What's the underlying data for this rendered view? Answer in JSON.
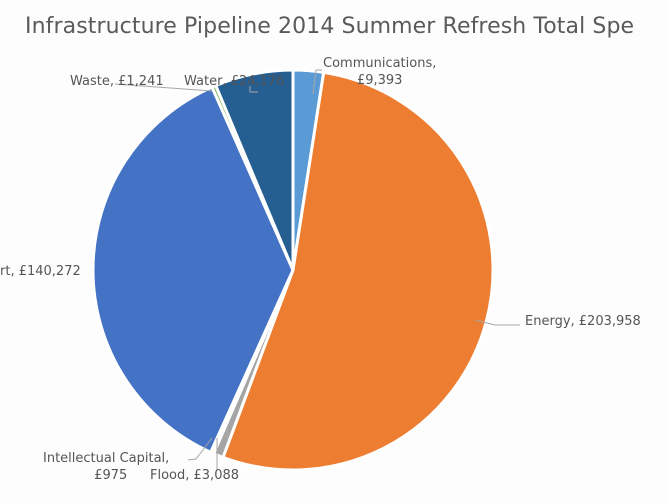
{
  "chart_data": {
    "type": "pie",
    "title": "Infrastructure Pipeline 2014 Summer Refresh Total Spe",
    "currency": "£",
    "start_angle_deg": 0,
    "direction": "clockwise",
    "series": [
      {
        "name": "Communications",
        "value": 9393,
        "color": "#5b9bd5",
        "label": "Communications,",
        "label2": "£9,393"
      },
      {
        "name": "Energy",
        "value": 203958,
        "color": "#ed7d31",
        "label": "Energy, £203,958"
      },
      {
        "name": "Flood",
        "value": 3088,
        "color": "#a5a5a5",
        "label": "Flood, £3,088"
      },
      {
        "name": "Intellectual Capital",
        "value": 975,
        "color": "#ffc000",
        "label": "Intellectual Capital,",
        "label2": "£975"
      },
      {
        "name": "Transport",
        "value": 140272,
        "color": "#4472c4",
        "label": "rt, £140,272"
      },
      {
        "name": "Waste",
        "value": 1241,
        "color": "#70ad47",
        "label": "Waste, £1,241"
      },
      {
        "name": "Water",
        "value": 24176,
        "color": "#255e91",
        "label": "Water, £24,176"
      }
    ],
    "legend": "none",
    "data_labels": "category name and value with leader lines"
  }
}
